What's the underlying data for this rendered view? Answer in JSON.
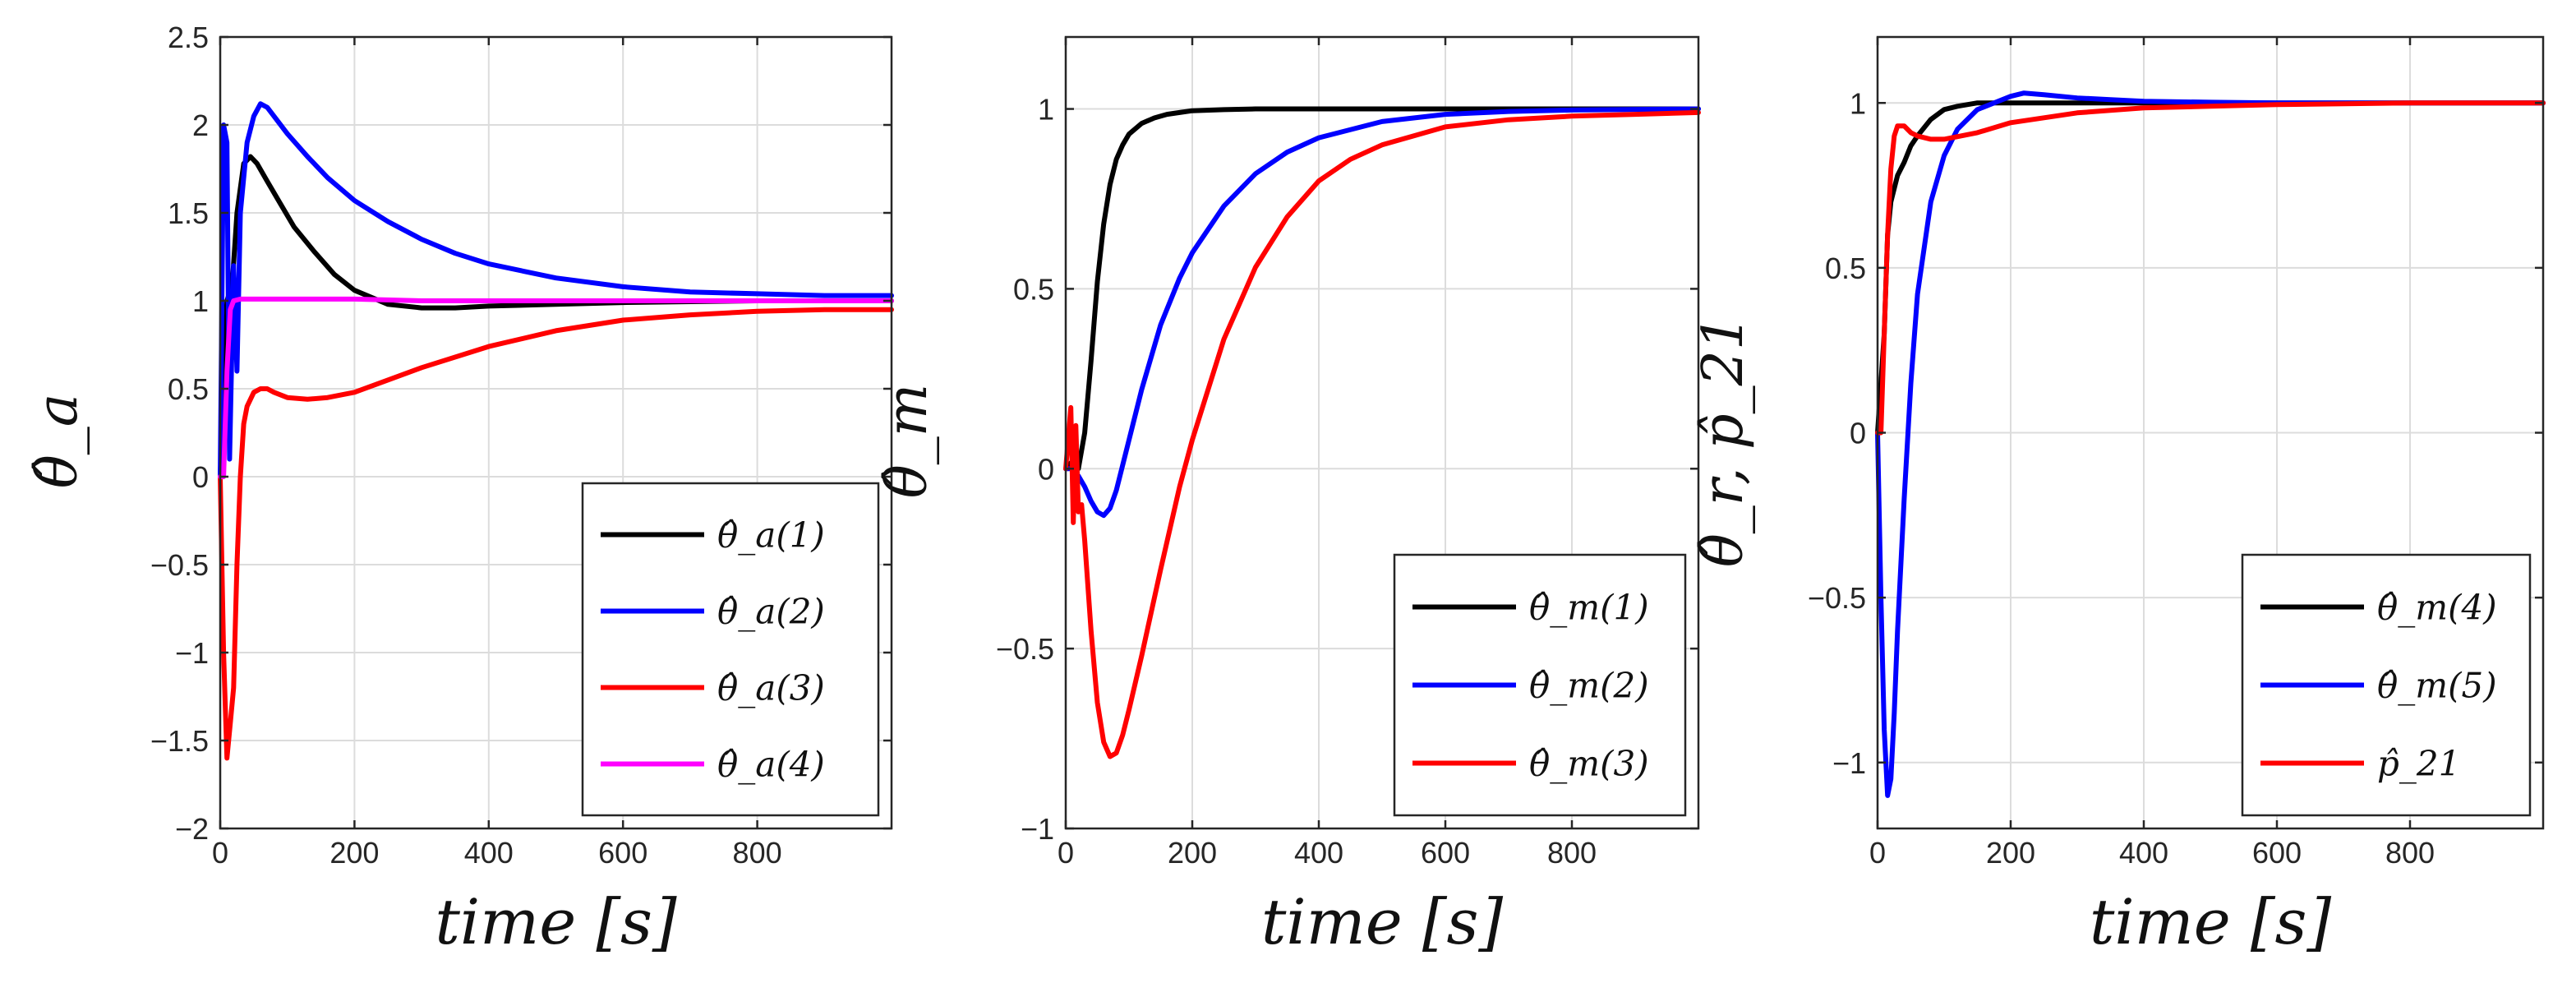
{
  "chart_data": [
    {
      "type": "line",
      "xlabel": "time [s]",
      "ylabel": "θ̂_a",
      "xlim": [
        0,
        1000
      ],
      "ylim": [
        -2,
        2.5
      ],
      "xticks": [
        0,
        200,
        400,
        600,
        800
      ],
      "xtick_labels": [
        "0",
        "200",
        "400",
        "600",
        "800"
      ],
      "yticks": [
        -2,
        -1.5,
        -1,
        -0.5,
        0,
        0.5,
        1,
        1.5,
        2,
        2.5
      ],
      "ytick_labels": [
        "−2",
        "−1.5",
        "−1",
        "−0.5",
        "0",
        "0.5",
        "1",
        "1.5",
        "2",
        "2.5"
      ],
      "grid": true,
      "legend_position": "bottom-right",
      "series": [
        {
          "name": "θ̂_a(1)",
          "color": "#000000",
          "x": [
            0,
            10,
            18,
            25,
            35,
            45,
            55,
            70,
            90,
            110,
            140,
            170,
            200,
            250,
            300,
            350,
            400,
            500,
            600,
            800,
            1000
          ],
          "y": [
            0,
            1.0,
            1.1,
            1.5,
            1.78,
            1.82,
            1.78,
            1.68,
            1.55,
            1.42,
            1.28,
            1.15,
            1.06,
            0.98,
            0.96,
            0.96,
            0.97,
            0.98,
            0.99,
            1.0,
            1.0
          ]
        },
        {
          "name": "θ̂_a(2)",
          "color": "#0000ff",
          "x": [
            0,
            5,
            10,
            14,
            20,
            25,
            30,
            40,
            50,
            60,
            70,
            80,
            100,
            130,
            160,
            200,
            250,
            300,
            350,
            400,
            500,
            600,
            700,
            800,
            900,
            1000
          ],
          "y": [
            0,
            2.0,
            1.9,
            0.1,
            1.2,
            0.6,
            1.5,
            1.9,
            2.05,
            2.12,
            2.1,
            2.05,
            1.95,
            1.82,
            1.7,
            1.57,
            1.45,
            1.35,
            1.27,
            1.21,
            1.13,
            1.08,
            1.05,
            1.04,
            1.03,
            1.03
          ]
        },
        {
          "name": "θ̂_a(3)",
          "color": "#ff0000",
          "x": [
            0,
            5,
            10,
            15,
            20,
            25,
            30,
            35,
            40,
            50,
            60,
            70,
            80,
            100,
            130,
            160,
            200,
            250,
            300,
            400,
            500,
            600,
            700,
            800,
            900,
            1000
          ],
          "y": [
            0,
            -1.0,
            -1.6,
            -1.4,
            -1.2,
            -0.5,
            0.0,
            0.3,
            0.4,
            0.48,
            0.5,
            0.5,
            0.48,
            0.45,
            0.44,
            0.45,
            0.48,
            0.55,
            0.62,
            0.74,
            0.83,
            0.89,
            0.92,
            0.94,
            0.95,
            0.95
          ]
        },
        {
          "name": "θ̂_a(4)",
          "color": "#ff00ff",
          "x": [
            0,
            5,
            10,
            15,
            20,
            30,
            50,
            100,
            200,
            300,
            400,
            500,
            1000
          ],
          "y": [
            0,
            0.0,
            0.6,
            0.95,
            1.0,
            1.01,
            1.01,
            1.01,
            1.01,
            1.0,
            1.0,
            1.0,
            1.0
          ]
        }
      ]
    },
    {
      "type": "line",
      "xlabel": "time [s]",
      "ylabel": "θ̂_m",
      "xlim": [
        0,
        1000
      ],
      "ylim": [
        -1,
        1.2
      ],
      "xticks": [
        0,
        200,
        400,
        600,
        800
      ],
      "xtick_labels": [
        "0",
        "200",
        "400",
        "600",
        "800"
      ],
      "yticks": [
        -1,
        -0.5,
        0,
        0.5,
        1
      ],
      "ytick_labels": [
        "−1",
        "−0.5",
        "0",
        "0.5",
        "1"
      ],
      "grid": true,
      "legend_position": "bottom-right",
      "series": [
        {
          "name": "θ̂_m(1)",
          "color": "#000000",
          "x": [
            0,
            10,
            20,
            30,
            40,
            50,
            60,
            70,
            80,
            90,
            100,
            120,
            140,
            160,
            180,
            200,
            250,
            300,
            400,
            600,
            1000
          ],
          "y": [
            0,
            0.02,
            0.0,
            0.1,
            0.3,
            0.52,
            0.68,
            0.79,
            0.86,
            0.9,
            0.93,
            0.96,
            0.975,
            0.985,
            0.99,
            0.995,
            0.998,
            1.0,
            1.0,
            1.0,
            1.0
          ]
        },
        {
          "name": "θ̂_m(2)",
          "color": "#0000ff",
          "x": [
            0,
            10,
            20,
            30,
            40,
            50,
            60,
            70,
            80,
            100,
            120,
            150,
            180,
            200,
            250,
            300,
            350,
            400,
            500,
            600,
            700,
            800,
            1000
          ],
          "y": [
            0,
            0.0,
            -0.02,
            -0.05,
            -0.09,
            -0.12,
            -0.13,
            -0.11,
            -0.06,
            0.08,
            0.22,
            0.4,
            0.53,
            0.6,
            0.73,
            0.82,
            0.88,
            0.92,
            0.965,
            0.985,
            0.993,
            0.997,
            1.0
          ]
        },
        {
          "name": "θ̂_m(3)",
          "color": "#ff0000",
          "x": [
            0,
            8,
            12,
            16,
            20,
            25,
            30,
            40,
            50,
            60,
            70,
            80,
            90,
            100,
            120,
            150,
            180,
            200,
            250,
            300,
            350,
            400,
            450,
            500,
            600,
            700,
            800,
            900,
            1000
          ],
          "y": [
            0,
            0.17,
            -0.15,
            0.12,
            -0.12,
            -0.1,
            -0.2,
            -0.45,
            -0.65,
            -0.76,
            -0.8,
            -0.79,
            -0.74,
            -0.67,
            -0.52,
            -0.28,
            -0.05,
            0.08,
            0.36,
            0.56,
            0.7,
            0.8,
            0.86,
            0.9,
            0.95,
            0.97,
            0.98,
            0.985,
            0.99
          ]
        }
      ]
    },
    {
      "type": "line",
      "xlabel": "time [s]",
      "ylabel": "θ̂_r,  p̂_21",
      "xlim": [
        0,
        1000
      ],
      "ylim": [
        -1.2,
        1.2
      ],
      "xticks": [
        0,
        200,
        400,
        600,
        800
      ],
      "xtick_labels": [
        "0",
        "200",
        "400",
        "600",
        "800"
      ],
      "yticks": [
        -1,
        -0.5,
        0,
        0.5,
        1
      ],
      "ytick_labels": [
        "−1",
        "−0.5",
        "0",
        "0.5",
        "1"
      ],
      "grid": true,
      "legend_position": "bottom-right",
      "series": [
        {
          "name": "θ̂_m(4)",
          "color": "#000000",
          "x": [
            0,
            10,
            15,
            20,
            30,
            40,
            50,
            60,
            80,
            100,
            120,
            150,
            200,
            300,
            400,
            1000
          ],
          "y": [
            0,
            0.3,
            0.6,
            0.7,
            0.78,
            0.82,
            0.87,
            0.9,
            0.95,
            0.98,
            0.99,
            1.0,
            1.0,
            1.0,
            1.0,
            1.0
          ]
        },
        {
          "name": "θ̂_m(5)",
          "color": "#0000ff",
          "x": [
            0,
            5,
            10,
            15,
            20,
            25,
            30,
            40,
            50,
            60,
            80,
            100,
            120,
            150,
            200,
            220,
            250,
            300,
            350,
            400,
            500,
            600,
            800,
            1000
          ],
          "y": [
            0,
            -0.5,
            -0.9,
            -1.1,
            -1.05,
            -0.85,
            -0.6,
            -0.2,
            0.15,
            0.42,
            0.7,
            0.84,
            0.92,
            0.98,
            1.02,
            1.03,
            1.025,
            1.015,
            1.01,
            1.005,
            1.002,
            1.0,
            1.0,
            1.0
          ]
        },
        {
          "name": "p̂_21",
          "color": "#ff0000",
          "x": [
            0,
            5,
            10,
            15,
            20,
            25,
            30,
            40,
            50,
            60,
            80,
            100,
            150,
            200,
            300,
            400,
            500,
            600,
            800,
            1000
          ],
          "y": [
            0,
            0.0,
            0.3,
            0.6,
            0.8,
            0.9,
            0.93,
            0.93,
            0.91,
            0.9,
            0.89,
            0.89,
            0.91,
            0.94,
            0.97,
            0.985,
            0.99,
            0.995,
            1.0,
            1.0
          ]
        }
      ]
    }
  ]
}
